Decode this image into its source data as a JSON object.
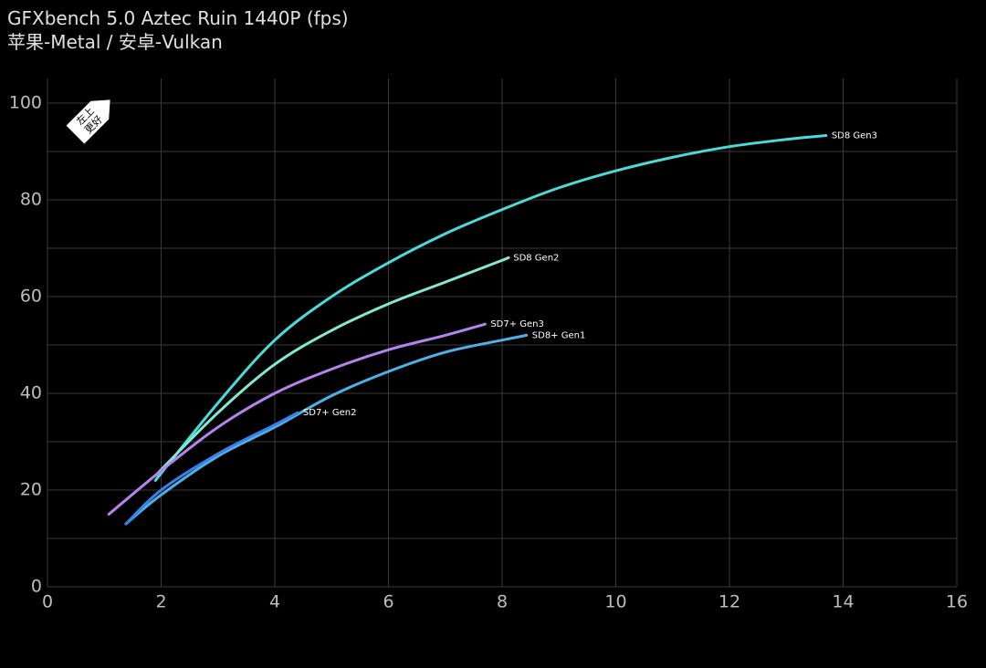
{
  "chart_data": {
    "type": "line",
    "title": "GFXbench 5.0 Aztec Ruin 1440P (fps)",
    "subtitle": "苹果-Metal / 安卓-Vulkan",
    "annotation": [
      "左上",
      "更好"
    ],
    "xlim": [
      0,
      16
    ],
    "xticks": [
      0,
      2,
      4,
      6,
      8,
      10,
      12,
      14,
      16
    ],
    "ylim": [
      0,
      100
    ],
    "yticks": [
      0,
      20,
      40,
      60,
      80,
      100
    ],
    "ygrid": [
      0,
      10,
      20,
      30,
      40,
      50,
      60,
      70,
      80,
      90,
      100
    ],
    "grid": true,
    "series": [
      {
        "name": "SD8 Gen3",
        "color": "#4fd8d8",
        "x": [
          1.9,
          3,
          4,
          5,
          6,
          7,
          8,
          9,
          10,
          11,
          12,
          13,
          13.7
        ],
        "values": [
          22,
          38,
          51,
          60,
          67,
          73,
          78,
          82.5,
          86,
          88.8,
          91,
          92.5,
          93.3
        ]
      },
      {
        "name": "SD8 Gen2",
        "color": "#86e6d4",
        "x": [
          1.9,
          3,
          4,
          5,
          6,
          7,
          8,
          8.1
        ],
        "values": [
          23,
          36,
          46,
          53,
          58.5,
          63,
          67.5,
          68
        ]
      },
      {
        "name": "SD7+ Gen3",
        "color": "#b483ec",
        "x": [
          1.08,
          2,
          3,
          4,
          5,
          6,
          7,
          7.7
        ],
        "values": [
          15,
          24,
          33,
          40,
          45,
          49,
          52,
          54.3
        ]
      },
      {
        "name": "SD8+ Gen1",
        "color": "#4eb0e4",
        "x": [
          1.38,
          2,
          3,
          4,
          5,
          6,
          7,
          8,
          8.43
        ],
        "values": [
          13,
          19,
          27,
          33,
          39.5,
          44.5,
          48.5,
          51,
          52
        ]
      },
      {
        "name": "SD7+ Gen2",
        "color": "#3d7fe6",
        "x": [
          1.38,
          2,
          3,
          4,
          4.4
        ],
        "values": [
          13,
          20,
          27.5,
          33.5,
          36
        ]
      }
    ]
  }
}
